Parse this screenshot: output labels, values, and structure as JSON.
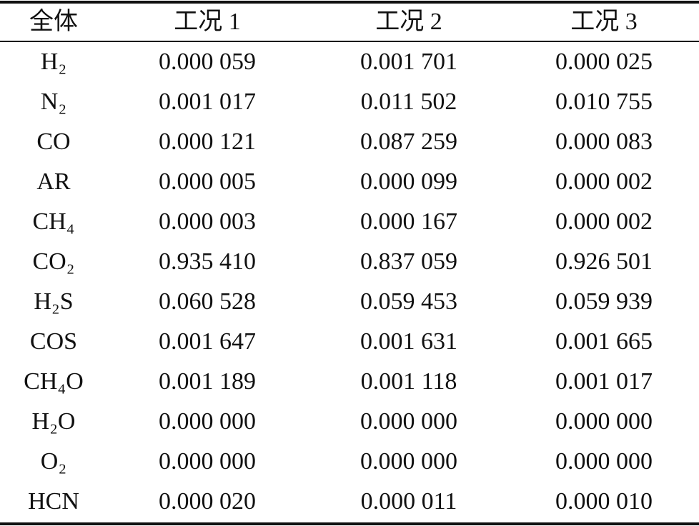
{
  "table": {
    "header": [
      "全体",
      "工况 1",
      "工况 2",
      "工况 3"
    ],
    "rows": [
      [
        "H₂",
        "0.000 059",
        "0.001 701",
        "0.000 025"
      ],
      [
        "N₂",
        "0.001 017",
        "0.011 502",
        "0.010 755"
      ],
      [
        "CO",
        "0.000 121",
        "0.087 259",
        "0.000 083"
      ],
      [
        "AR",
        "0.000 005",
        "0.000 099",
        "0.000 002"
      ],
      [
        "CH₄",
        "0.000 003",
        "0.000 167",
        "0.000 002"
      ],
      [
        "CO₂",
        "0.935 410",
        "0.837 059",
        "0.926 501"
      ],
      [
        "H₂S",
        "0.060 528",
        "0.059 453",
        "0.059 939"
      ],
      [
        "COS",
        "0.001 647",
        "0.001 631",
        "0.001 665"
      ],
      [
        "CH₄O",
        "0.001 189",
        "0.001 118",
        "0.001 017"
      ],
      [
        "H₂O",
        "0.000 000",
        "0.000 000",
        "0.000 000"
      ],
      [
        "O₂",
        "0.000 000",
        "0.000 000",
        "0.000 000"
      ],
      [
        "HCN",
        "0.000 020",
        "0.000 011",
        "0.000 010"
      ]
    ]
  }
}
